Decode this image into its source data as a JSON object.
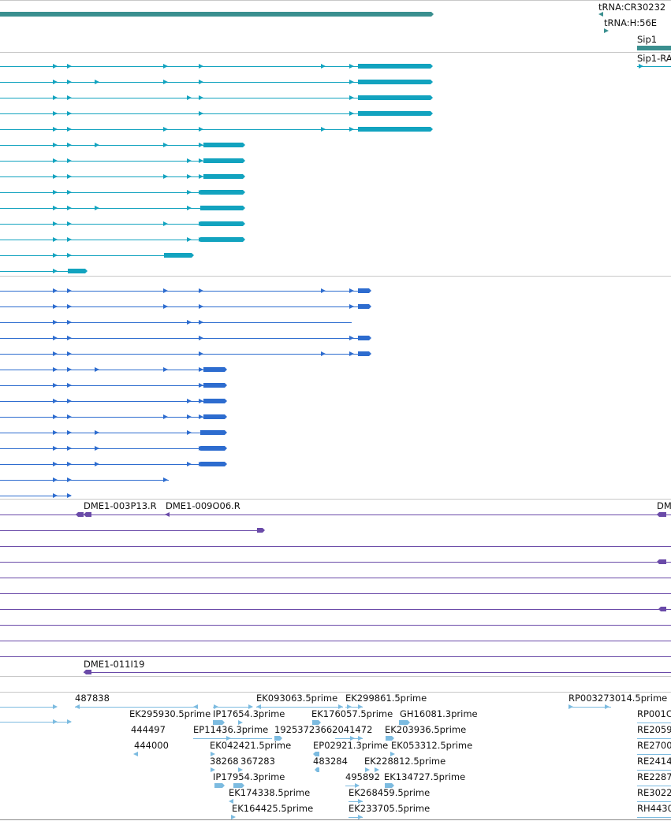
{
  "colors": {
    "background": "#ffffff",
    "separator": "#c8c8c8",
    "gene": "#3a8f8f",
    "cdna": "#12a3bf",
    "protein": "#2d6ccf",
    "clone": "#6a4aa8",
    "est": "#7cbbe0"
  },
  "labels": {
    "trna_cr30232": "tRNA:CR30232",
    "trna_h56e": "tRNA:H:56E",
    "sip1": "Sip1",
    "sip1_ra": "Sip1-RA",
    "dme1_003p13": "DME1-003P13.R",
    "dme1_009o06": "DME1-009O06.R",
    "dme1_edge": "DM",
    "dme1_011i19": "DME1-011I19",
    "est": [
      "487838",
      "EK093063.5prime",
      "EK299861.5prime",
      "RP003273014.5prime",
      "EK295930.5prime",
      "IP17654.3prime",
      "EK176057.5prime",
      "GH16081.3prime",
      "RP001C",
      "444497",
      "EP11436.3prime",
      "19253723662041472",
      "EK203936.5prime",
      "RE2059",
      "444000",
      "EK042421.5prime",
      "EP02921.3prime",
      "EK053312.5prime",
      "RE2700",
      "38268",
      "367283",
      "483284",
      "EK228812.5prime",
      "RE2414",
      "IP17954.3prime",
      "495892",
      "EK134727.5prime",
      "RE2287",
      "EK174338.5prime",
      "EK268459.5prime",
      "RE3022",
      "EK164425.5prime",
      "EK233705.5prime",
      "RH4430"
    ]
  }
}
